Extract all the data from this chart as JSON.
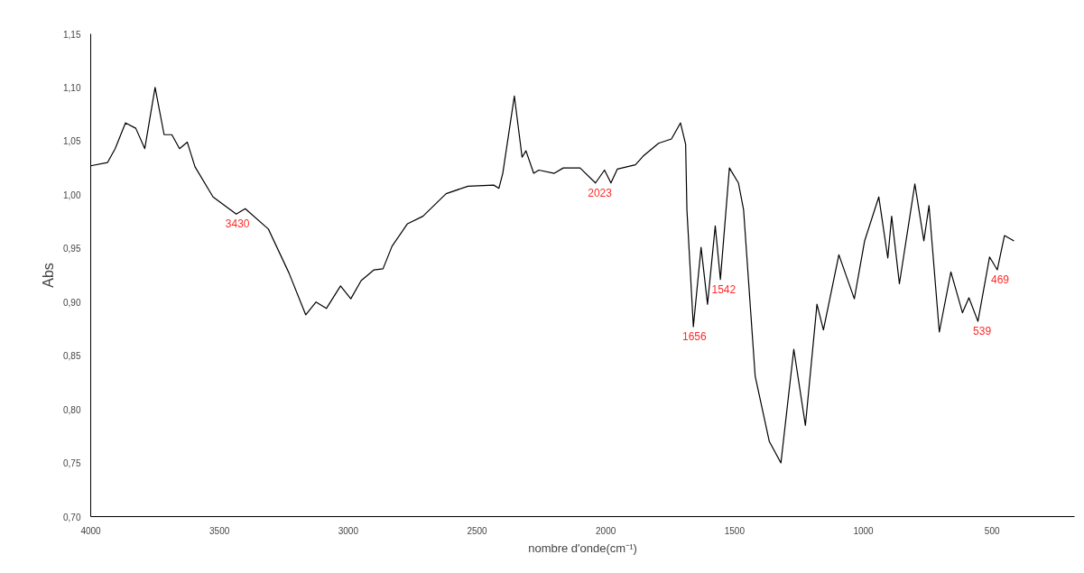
{
  "chart_data": {
    "type": "line",
    "xlabel": "nombre d'onde(cm⁻¹)",
    "ylabel": "Abs",
    "xlim": [
      4000,
      180
    ],
    "ylim": [
      0.7,
      1.15
    ],
    "xticks": [
      4000,
      3500,
      3000,
      2500,
      2000,
      1500,
      1000,
      500
    ],
    "yticks": [
      {
        "value": 0.7,
        "label": "0,70"
      },
      {
        "value": 0.75,
        "label": "0,75"
      },
      {
        "value": 0.8,
        "label": "0,80"
      },
      {
        "value": 0.85,
        "label": "0,85"
      },
      {
        "value": 0.9,
        "label": "0,90"
      },
      {
        "value": 0.95,
        "label": "0,95"
      },
      {
        "value": 1.0,
        "label": "1,00"
      },
      {
        "value": 1.05,
        "label": "1,05"
      },
      {
        "value": 1.1,
        "label": "1,10"
      },
      {
        "value": 1.15,
        "label": "1,15"
      }
    ],
    "grid": false,
    "line_style": "solid",
    "series": [
      {
        "color": "#000000",
        "x": [
          4000,
          3935,
          3905,
          3865,
          3825,
          3790,
          3750,
          3715,
          3685,
          3655,
          3625,
          3595,
          3525,
          3435,
          3400,
          3310,
          3230,
          3165,
          3125,
          3085,
          3030,
          2990,
          2950,
          2900,
          2865,
          2830,
          2770,
          2710,
          2620,
          2535,
          2435,
          2415,
          2400,
          2355,
          2325,
          2310,
          2280,
          2260,
          2200,
          2165,
          2100,
          2040,
          2005,
          1980,
          1955,
          1885,
          1855,
          1795,
          1745,
          1710,
          1690,
          1685,
          1660,
          1630,
          1605,
          1575,
          1555,
          1520,
          1485,
          1465,
          1420,
          1365,
          1320,
          1270,
          1225,
          1180,
          1155,
          1095,
          1035,
          995,
          940,
          905,
          890,
          860,
          800,
          765,
          745,
          705,
          660,
          615,
          590,
          555,
          510,
          480,
          452,
          415
        ],
        "values": [
          1.027,
          1.03,
          1.043,
          1.067,
          1.062,
          1.043,
          1.1,
          1.056,
          1.056,
          1.043,
          1.049,
          1.026,
          0.998,
          0.982,
          0.987,
          0.968,
          0.927,
          0.888,
          0.9,
          0.894,
          0.915,
          0.903,
          0.92,
          0.93,
          0.931,
          0.952,
          0.973,
          0.98,
          1.001,
          1.008,
          1.009,
          1.006,
          1.02,
          1.092,
          1.035,
          1.041,
          1.02,
          1.023,
          1.02,
          1.025,
          1.025,
          1.011,
          1.023,
          1.011,
          1.024,
          1.028,
          1.036,
          1.048,
          1.052,
          1.067,
          1.047,
          0.986,
          0.877,
          0.951,
          0.898,
          0.971,
          0.921,
          1.025,
          1.011,
          0.986,
          0.831,
          0.77,
          0.75,
          0.856,
          0.785,
          0.898,
          0.874,
          0.944,
          0.903,
          0.957,
          0.998,
          0.941,
          0.98,
          0.917,
          1.01,
          0.957,
          0.99,
          0.872,
          0.928,
          0.89,
          0.904,
          0.882,
          0.942,
          0.93,
          0.962,
          0.957
        ]
      }
    ],
    "annotations": [
      {
        "text": "3430",
        "x": 3430,
        "y": 0.982
      },
      {
        "text": "2023",
        "x": 2023,
        "y": 1.011
      },
      {
        "text": "1656",
        "x": 1656,
        "y": 0.877
      },
      {
        "text": "1542",
        "x": 1542,
        "y": 0.921
      },
      {
        "text": "539",
        "x": 539,
        "y": 0.882
      },
      {
        "text": "469",
        "x": 469,
        "y": 0.93
      }
    ]
  }
}
